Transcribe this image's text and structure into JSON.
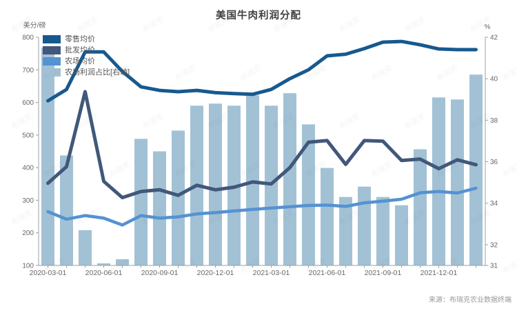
{
  "page": {
    "title": "美国牛肉利润分配",
    "source_caption": "来源：布瑞克农业数据终端",
    "watermark_text": "布瑞克"
  },
  "chart_data": {
    "type": "mixed-bar-line",
    "grid": false,
    "legend_position": "top-left",
    "categories": [
      "2020-03-01",
      "2020-04-01",
      "2020-05-01",
      "2020-06-01",
      "2020-07-01",
      "2020-08-01",
      "2020-09-01",
      "2020-10-01",
      "2020-11-01",
      "2020-12-01",
      "2021-01-01",
      "2021-02-01",
      "2021-03-01",
      "2021-04-01",
      "2021-05-01",
      "2021-06-01",
      "2021-07-01",
      "2021-08-01",
      "2021-09-01",
      "2021-10-01",
      "2021-11-01",
      "2021-12-01",
      "2022-01-01",
      "2022-02-01"
    ],
    "x_tick_indices": [
      0,
      3,
      6,
      9,
      12,
      15,
      18,
      21
    ],
    "left_axis": {
      "unit": "美分/磅",
      "min": 100,
      "max": 800,
      "ticks": [
        800,
        700,
        600,
        500,
        400,
        300,
        200,
        100
      ]
    },
    "right_axis": {
      "unit": "%",
      "min": 31,
      "max": 42,
      "ticks": [
        42,
        40,
        38,
        36,
        34,
        32,
        31
      ]
    },
    "series": [
      {
        "name": "零售均价",
        "type": "line",
        "axis": "left",
        "color": "#17598f",
        "stroke_width": 5,
        "values": [
          605,
          640,
          755,
          755,
          695,
          648,
          637,
          633,
          637,
          630,
          627,
          625,
          640,
          673,
          700,
          743,
          748,
          765,
          785,
          787,
          777,
          764,
          762,
          762
        ]
      },
      {
        "name": "批发均价",
        "type": "line",
        "axis": "left",
        "color": "#41587a",
        "stroke_width": 5,
        "values": [
          352,
          403,
          633,
          358,
          308,
          327,
          332,
          315,
          346,
          332,
          340,
          356,
          350,
          400,
          478,
          483,
          410,
          483,
          481,
          422,
          426,
          397,
          424,
          409
        ]
      },
      {
        "name": "农场均价",
        "type": "line",
        "axis": "left",
        "color": "#5492d2",
        "stroke_width": 4.5,
        "values": [
          265,
          242,
          253,
          245,
          224,
          253,
          245,
          249,
          258,
          262,
          267,
          272,
          276,
          280,
          284,
          285,
          281,
          292,
          297,
          303,
          323,
          327,
          322,
          337
        ]
      },
      {
        "name": "农场利润占比[右轴]",
        "type": "bar",
        "axis": "right",
        "color": "#a2c1d5",
        "values": [
          41.5,
          36.3,
          32.7,
          31.1,
          31.3,
          37.1,
          36.5,
          37.5,
          38.7,
          38.8,
          38.7,
          39.2,
          38.7,
          39.3,
          37.8,
          35.7,
          34.3,
          34.8,
          34.3,
          33.9,
          36.6,
          39.1,
          39.0,
          40.2
        ]
      }
    ],
    "axis_style": {
      "line_color": "#9aa0a6",
      "tick_label_color": "#666666",
      "unit_label_color": "#666666"
    }
  }
}
